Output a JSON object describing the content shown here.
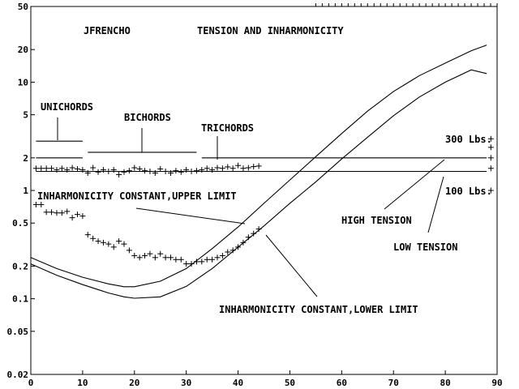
{
  "chart_data": {
    "type": "line",
    "title": "JFRENCHO",
    "subtitle": "TENSION AND INHARMONICITY",
    "xlabel": "",
    "ylabel": "",
    "xlim": [
      0,
      90
    ],
    "ylim": [
      0.02,
      50
    ],
    "yscale": "log",
    "grid": false,
    "x_ticks": [
      0,
      10,
      20,
      30,
      40,
      50,
      60,
      70,
      80,
      90
    ],
    "y_ticks": [
      0.02,
      0.05,
      0.1,
      0.2,
      0.5,
      1,
      2,
      5,
      10,
      20,
      50
    ],
    "y_tick_labels": [
      "0.02",
      "0.05",
      "0.1",
      "0.2",
      "0.5",
      "1",
      "2",
      "5",
      "10",
      "20",
      "50"
    ],
    "series": [
      {
        "kind": "curve",
        "x": [
          0,
          5,
          10,
          15,
          18,
          20,
          25,
          30,
          35,
          40,
          45,
          50,
          55,
          60,
          65,
          70,
          75,
          80,
          85,
          88
        ],
        "values": [
          0.24,
          0.19,
          0.158,
          0.137,
          0.129,
          0.129,
          0.145,
          0.19,
          0.29,
          0.46,
          0.76,
          1.25,
          2.05,
          3.35,
          5.4,
          8.2,
          11.5,
          15.0,
          19.5,
          22.0
        ]
      },
      {
        "kind": "curve",
        "x": [
          0,
          5,
          10,
          15,
          18,
          20,
          25,
          30,
          35,
          40,
          45,
          50,
          55,
          60,
          65,
          70,
          75,
          80,
          85,
          88
        ],
        "values": [
          0.21,
          0.165,
          0.135,
          0.113,
          0.104,
          0.101,
          0.104,
          0.13,
          0.19,
          0.3,
          0.47,
          0.76,
          1.2,
          1.95,
          3.1,
          4.9,
          7.3,
          10.0,
          13.0,
          12.0
        ]
      },
      {
        "kind": "hline",
        "x": [
          1,
          10
        ],
        "values": [
          2.85,
          2.85
        ]
      },
      {
        "kind": "hline",
        "x": [
          1,
          10
        ],
        "values": [
          2.0,
          2.0
        ]
      },
      {
        "kind": "hline",
        "x": [
          11,
          32
        ],
        "values": [
          2.25,
          2.25
        ]
      },
      {
        "kind": "hline",
        "x": [
          33,
          88
        ],
        "values": [
          2.0,
          2.0
        ]
      },
      {
        "kind": "hline",
        "x": [
          1,
          88
        ],
        "values": [
          1.5,
          1.5
        ]
      },
      {
        "kind": "markers-upper",
        "x": [
          1,
          2,
          3,
          4,
          5,
          6,
          7,
          8,
          9,
          10,
          11,
          12,
          13,
          14,
          15,
          16,
          17,
          18,
          19,
          20,
          21,
          22,
          23,
          24,
          25,
          26,
          27,
          28,
          29,
          30,
          31,
          32,
          33,
          34,
          35,
          36,
          37,
          38,
          39,
          40,
          41,
          42,
          43,
          44
        ],
        "values": [
          1.6,
          1.6,
          1.6,
          1.6,
          1.55,
          1.6,
          1.55,
          1.62,
          1.58,
          1.55,
          1.45,
          1.62,
          1.48,
          1.55,
          1.5,
          1.55,
          1.4,
          1.48,
          1.52,
          1.62,
          1.58,
          1.52,
          1.5,
          1.45,
          1.58,
          1.5,
          1.45,
          1.52,
          1.48,
          1.55,
          1.5,
          1.52,
          1.55,
          1.6,
          1.55,
          1.62,
          1.6,
          1.65,
          1.6,
          1.7,
          1.6,
          1.62,
          1.66,
          1.68
        ]
      },
      {
        "kind": "markers-lower",
        "x": [
          1,
          2,
          3,
          4,
          5,
          6,
          7,
          8,
          9,
          10,
          11,
          12,
          13,
          14,
          15,
          16,
          17,
          18,
          19,
          20,
          21,
          22,
          23,
          24,
          25,
          26,
          27,
          28,
          29,
          30,
          31,
          32,
          33,
          34,
          35,
          36,
          37,
          38,
          39,
          40,
          41,
          42,
          43,
          44
        ],
        "values": [
          0.74,
          0.74,
          0.63,
          0.63,
          0.62,
          0.62,
          0.64,
          0.56,
          0.6,
          0.58,
          0.39,
          0.36,
          0.34,
          0.33,
          0.32,
          0.3,
          0.34,
          0.32,
          0.28,
          0.25,
          0.24,
          0.25,
          0.26,
          0.24,
          0.26,
          0.24,
          0.24,
          0.23,
          0.23,
          0.21,
          0.21,
          0.22,
          0.22,
          0.23,
          0.23,
          0.24,
          0.25,
          0.27,
          0.28,
          0.3,
          0.33,
          0.37,
          0.4,
          0.44
        ]
      },
      {
        "kind": "markers-edge",
        "x": [
          88.8,
          88.8,
          88.8,
          88.8,
          88.8
        ],
        "values": [
          3.0,
          2.5,
          2.0,
          1.6,
          1.0
        ]
      }
    ],
    "annotations": [
      "UNICHORDS",
      "BICHORDS",
      "TRICHORDS",
      "300 Lbs.",
      "100 Lbs.",
      "INHARMONICITY CONSTANT,UPPER LIMIT",
      "HIGH TENSION",
      "LOW TENSION",
      "INHARMONICITY CONSTANT,LOWER LIMIT"
    ]
  }
}
